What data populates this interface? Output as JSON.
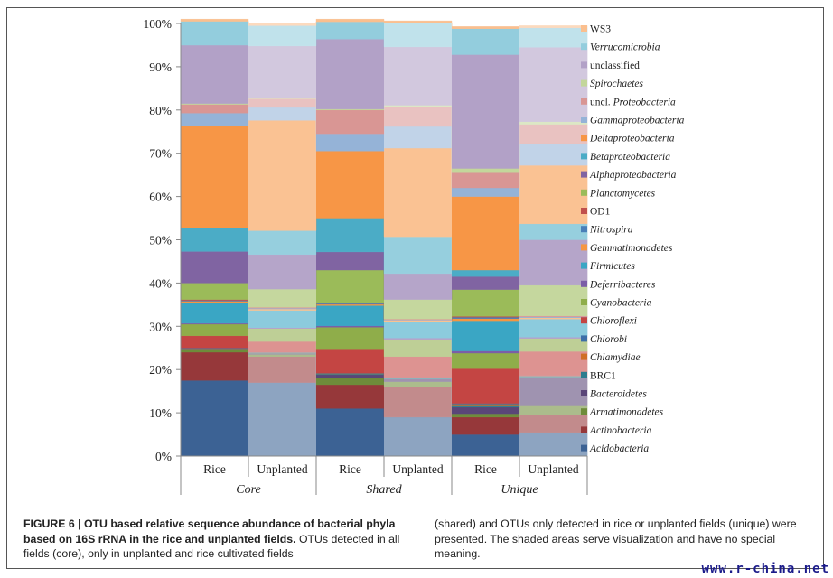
{
  "chart_data": {
    "type": "area",
    "stacked": true,
    "ylim": [
      0,
      100
    ],
    "yticks": [
      "0%",
      "10%",
      "20%",
      "30%",
      "40%",
      "50%",
      "60%",
      "70%",
      "80%",
      "90%",
      "100%"
    ],
    "categories": [
      "Rice",
      "Unplanted",
      "Rice",
      "Unplanted",
      "Rice",
      "Unplanted"
    ],
    "groups": [
      "Core",
      "Shared",
      "Unique"
    ],
    "shaded_columns": [
      1,
      2,
      3,
      4,
      5
    ],
    "series": [
      {
        "name": "Acidobacteria",
        "color": "#3c6294",
        "values": [
          17.5,
          17,
          11,
          9,
          5,
          5.5
        ]
      },
      {
        "name": "Actinobacteria",
        "color": "#96383a",
        "values": [
          6.5,
          6,
          5.5,
          7,
          4,
          4
        ]
      },
      {
        "name": "Armatimonadetes",
        "color": "#6e8c3a",
        "values": [
          0.5,
          0.5,
          1.5,
          1.2,
          0.8,
          2.3
        ]
      },
      {
        "name": "Bacteroidetes",
        "color": "#5a4678",
        "values": [
          0.2,
          0.2,
          0.8,
          0.6,
          1.5,
          6.4
        ]
      },
      {
        "name": "BRC1",
        "color": "#2e7d8e",
        "values": [
          0.1,
          0.1,
          0.2,
          0.2,
          0.5,
          0.2
        ]
      },
      {
        "name": "Chlamydiae",
        "color": "#d06f27",
        "values": [
          0.1,
          0.1,
          0.1,
          0.1,
          0.2,
          0.1
        ]
      },
      {
        "name": "Chlorobi",
        "color": "#3d6fa8",
        "values": [
          0.1,
          0.1,
          0.1,
          0.1,
          0.2,
          0.1
        ]
      },
      {
        "name": "Chloroflexi",
        "color": "#c44543",
        "values": [
          2.8,
          2.5,
          5.6,
          4.8,
          8.0,
          5.6
        ]
      },
      {
        "name": "Cyanobacteria",
        "color": "#8fad4a",
        "values": [
          2.7,
          3,
          5,
          4,
          3.6,
          3
        ]
      },
      {
        "name": "Deferribacteres",
        "color": "#7b5ea7",
        "values": [
          0.2,
          0.2,
          0.3,
          0.3,
          0.5,
          0.3
        ]
      },
      {
        "name": "Firmicutes",
        "color": "#3aa6c4",
        "values": [
          4.8,
          4,
          4.7,
          3.8,
          7,
          4.2
        ]
      },
      {
        "name": "Gemmatimonadetes",
        "color": "#f59743",
        "values": [
          0.3,
          0.3,
          0.3,
          0.3,
          0.5,
          0.3
        ]
      },
      {
        "name": "Nitrospira",
        "color": "#4a7fb8",
        "values": [
          0.2,
          0.2,
          0.2,
          0.1,
          0.3,
          0.2
        ]
      },
      {
        "name": "OD1",
        "color": "#c0504d",
        "values": [
          0.2,
          0.2,
          0.2,
          0.2,
          0.2,
          0.2
        ]
      },
      {
        "name": "Planctomycetes",
        "color": "#9bbb59",
        "values": [
          3.8,
          4.2,
          7.5,
          4.5,
          6.2,
          7.1
        ]
      },
      {
        "name": "Alphaproteobacteria",
        "color": "#8064a2",
        "values": [
          7.3,
          8,
          4.2,
          6,
          3,
          10.5
        ]
      },
      {
        "name": "Betaproteobacteria",
        "color": "#4bacc6",
        "values": [
          5.5,
          5.5,
          7.8,
          8.5,
          1.5,
          3.7
        ]
      },
      {
        "name": "Deltaproteobacteria",
        "color": "#f79646",
        "values": [
          23.5,
          25.5,
          15.5,
          20.5,
          17,
          13.5
        ]
      },
      {
        "name": "Gammaproteobacteria",
        "color": "#95b3d7",
        "values": [
          3,
          3,
          4,
          5,
          2,
          5
        ]
      },
      {
        "name": "uncl. Proteobacteria",
        "color": "#d99694",
        "values": [
          2,
          2,
          5.5,
          4.5,
          3.5,
          4.5
        ]
      },
      {
        "name": "Spirochaetes",
        "color": "#c3d69b",
        "values": [
          0.2,
          0.2,
          0.2,
          0.4,
          1,
          0.6
        ]
      },
      {
        "name": "unclassified",
        "color": "#b2a1c7",
        "values": [
          13.5,
          12,
          16.2,
          13.5,
          26.3,
          17.2
        ]
      },
      {
        "name": "Verrucomicrobia",
        "color": "#93cddd",
        "values": [
          5.5,
          4.7,
          4,
          5.5,
          6,
          4.5
        ]
      },
      {
        "name": "WS3",
        "color": "#fabf8f",
        "values": [
          0.5,
          0.5,
          0.6,
          0.5,
          0.5,
          0.5
        ]
      }
    ],
    "legend_italic": [
      "Verrucomicrobia",
      "Spirochaetes",
      "Proteobacteria",
      "Gammaproteobacteria",
      "Deltaproteobacteria",
      "Betaproteobacteria",
      "Alphaproteobacteria",
      "Planctomycetes",
      "Nitrospira",
      "Gemmatimonadetes",
      "Firmicutes",
      "Deferribacteres",
      "Cyanobacteria",
      "Chloroflexi",
      "Chlorobi",
      "Chlamydiae",
      "Bacteroidetes",
      "Armatimonadetes",
      "Actinobacteria",
      "Acidobacteria"
    ]
  },
  "caption": {
    "figure_label": "FIGURE 6 | OTU based relative sequence abundance of bacterial phyla based on 16S rRNA in the rice and unplanted fields.",
    "col1_rest": " OTUs detected in all fields (core), only in unplanted and rice cultivated fields",
    "col2": "(shared) and OTUs only detected in rice or unplanted fields (unique) were presented. The shaded areas serve visualization and have no special meaning."
  },
  "watermark": "www.r-china.net"
}
